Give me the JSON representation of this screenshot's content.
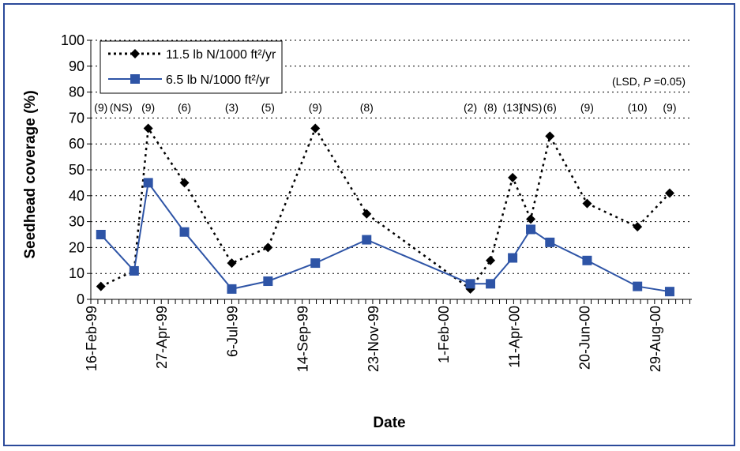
{
  "chart_data": {
    "type": "line",
    "xlabel": "Date",
    "ylabel": "Seedhead coverage (%)",
    "ylim": [
      0,
      100
    ],
    "y_ticks": [
      "0",
      "10",
      "20",
      "30",
      "40",
      "50",
      "60",
      "70",
      "80",
      "90",
      "100"
    ],
    "x_range": [
      "1999-02-16",
      "2000-10-05"
    ],
    "x_tick_dates": [
      "1999-02-16",
      "1999-04-27",
      "1999-07-06",
      "1999-09-14",
      "1999-11-23",
      "2000-02-01",
      "2000-04-11",
      "2000-06-20",
      "2000-08-29"
    ],
    "x_tick_labels": [
      "16-Feb-99",
      "27-Apr-99",
      "6-Jul-99",
      "14-Sep-99",
      "23-Nov-99",
      "1-Feb-00",
      "11-Apr-00",
      "20-Jun-00",
      "29-Aug-00"
    ],
    "grid": "horizontal dotted",
    "legend_position": "top-left",
    "series": [
      {
        "name": "11.5 lb N/1000 ft²/yr",
        "color": "#000000",
        "line_style": "dotted",
        "marker": "diamond",
        "points": [
          {
            "x": "1999-02-26",
            "y": 5
          },
          {
            "x": "1999-03-31",
            "y": 11
          },
          {
            "x": "1999-04-14",
            "y": 66
          },
          {
            "x": "1999-05-20",
            "y": 45
          },
          {
            "x": "1999-07-06",
            "y": 14
          },
          {
            "x": "1999-08-11",
            "y": 20
          },
          {
            "x": "1999-09-27",
            "y": 66
          },
          {
            "x": "1999-11-17",
            "y": 33
          },
          {
            "x": "2000-02-28",
            "y": 4
          },
          {
            "x": "2000-03-19",
            "y": 15
          },
          {
            "x": "2000-04-10",
            "y": 47
          },
          {
            "x": "2000-04-28",
            "y": 31
          },
          {
            "x": "2000-05-17",
            "y": 63
          },
          {
            "x": "2000-06-23",
            "y": 37
          },
          {
            "x": "2000-08-12",
            "y": 28
          },
          {
            "x": "2000-09-13",
            "y": 41
          }
        ]
      },
      {
        "name": "6.5 lb N/1000 ft²/yr",
        "color": "#2e54a6",
        "line_style": "solid",
        "marker": "square",
        "points": [
          {
            "x": "1999-02-26",
            "y": 25
          },
          {
            "x": "1999-03-31",
            "y": 11
          },
          {
            "x": "1999-04-14",
            "y": 45
          },
          {
            "x": "1999-05-20",
            "y": 26
          },
          {
            "x": "1999-07-06",
            "y": 4
          },
          {
            "x": "1999-08-11",
            "y": 7
          },
          {
            "x": "1999-09-27",
            "y": 14
          },
          {
            "x": "1999-11-17",
            "y": 23
          },
          {
            "x": "2000-02-28",
            "y": 6
          },
          {
            "x": "2000-03-19",
            "y": 6
          },
          {
            "x": "2000-04-10",
            "y": 16
          },
          {
            "x": "2000-04-28",
            "y": 27
          },
          {
            "x": "2000-05-17",
            "y": 22
          },
          {
            "x": "2000-06-23",
            "y": 15
          },
          {
            "x": "2000-08-12",
            "y": 5
          },
          {
            "x": "2000-09-13",
            "y": 3
          }
        ]
      }
    ],
    "annotation_header": {
      "prefix": "(LSD, ",
      "italic": "P",
      "suffix": " =0.05)"
    },
    "lsd_labels": [
      {
        "x": "1999-02-26",
        "text": "(9)"
      },
      {
        "x": "1999-03-18",
        "text": "(NS)"
      },
      {
        "x": "1999-04-14",
        "text": "(9)"
      },
      {
        "x": "1999-05-20",
        "text": "(6)"
      },
      {
        "x": "1999-07-06",
        "text": "(3)"
      },
      {
        "x": "1999-08-11",
        "text": "(5)"
      },
      {
        "x": "1999-09-27",
        "text": "(9)"
      },
      {
        "x": "1999-11-17",
        "text": "(8)"
      },
      {
        "x": "2000-02-28",
        "text": "(2)"
      },
      {
        "x": "2000-03-19",
        "text": "(8)"
      },
      {
        "x": "2000-04-10",
        "text": "(13)"
      },
      {
        "x": "2000-04-28",
        "text": "(NS)"
      },
      {
        "x": "2000-05-17",
        "text": "(6)"
      },
      {
        "x": "2000-06-23",
        "text": "(9)"
      },
      {
        "x": "2000-08-12",
        "text": "(10)"
      },
      {
        "x": "2000-09-13",
        "text": "(9)"
      }
    ]
  }
}
